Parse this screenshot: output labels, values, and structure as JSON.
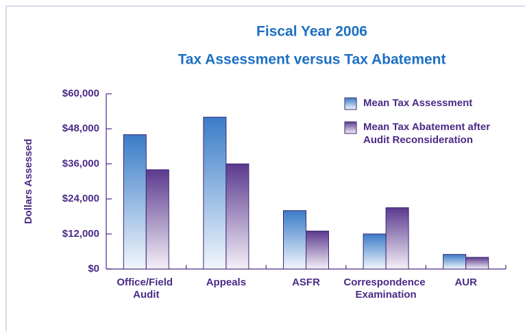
{
  "chart_data": {
    "type": "bar",
    "title": "Fiscal Year 2006",
    "subtitle": "Tax Assessment versus Tax Abatement",
    "y_label": "Dollars Assessed",
    "categories": [
      "Office/Field Audit",
      "Appeals",
      "ASFR",
      "Correspondence Examination",
      "AUR"
    ],
    "series": [
      {
        "name": "Mean Tax Assessment",
        "color": "#3a7cc8",
        "values": [
          46000,
          52000,
          20000,
          12000,
          5000
        ]
      },
      {
        "name": "Mean Tax Abatement after Audit Reconsideration",
        "color": "#5b3a8e",
        "values": [
          34000,
          36000,
          13000,
          21000,
          4000
        ]
      }
    ],
    "ylim": [
      0,
      60000
    ],
    "yticks": [
      {
        "value": 0,
        "label": "$0"
      },
      {
        "value": 12000,
        "label": "$12,000"
      },
      {
        "value": 24000,
        "label": "$24,000"
      },
      {
        "value": 36000,
        "label": "$36,000"
      },
      {
        "value": 48000,
        "label": "$48,000"
      },
      {
        "value": 60000,
        "label": "$60,000"
      }
    ],
    "legend": "top-right"
  }
}
